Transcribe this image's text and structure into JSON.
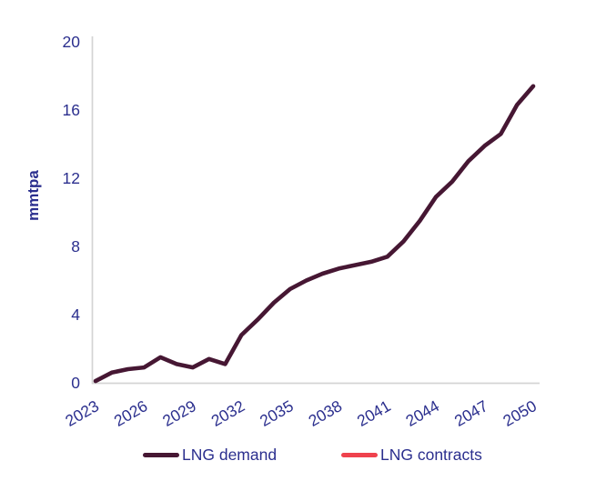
{
  "page": {
    "background_color": "#ffffff"
  },
  "chart_data": {
    "type": "line",
    "title": "",
    "xlabel": "",
    "ylabel": "mmtpa",
    "x": [
      2023,
      2024,
      2025,
      2026,
      2027,
      2028,
      2029,
      2030,
      2031,
      2032,
      2033,
      2034,
      2035,
      2036,
      2037,
      2038,
      2039,
      2040,
      2041,
      2042,
      2043,
      2044,
      2045,
      2046,
      2047,
      2048,
      2049,
      2050
    ],
    "series": [
      {
        "name": "LNG demand",
        "color": "#461733",
        "values": [
          0.1,
          0.6,
          0.8,
          0.9,
          1.5,
          1.1,
          0.9,
          1.4,
          1.1,
          2.8,
          3.7,
          4.7,
          5.5,
          6.0,
          6.4,
          6.7,
          6.9,
          7.1,
          7.4,
          8.3,
          9.5,
          10.9,
          11.8,
          13.0,
          13.9,
          14.6,
          16.3,
          17.4
        ]
      },
      {
        "name": "LNG contracts",
        "color": "#ef424d",
        "values": [],
        "note": "legend entry only; no contracts line visible in plot area"
      }
    ],
    "x_ticks": [
      2023,
      2026,
      2029,
      2032,
      2035,
      2038,
      2041,
      2044,
      2047,
      2050
    ],
    "y_ticks": [
      0,
      4,
      8,
      12,
      16,
      20
    ],
    "ylim": [
      0,
      20
    ],
    "xlim": [
      2023,
      2050
    ],
    "grid": false,
    "legend_position": "bottom",
    "x_tick_rotation_deg": -30,
    "axis_color": "#d4d4d4",
    "tick_label_color": "#2b2f8e",
    "line_width": 4.6
  }
}
